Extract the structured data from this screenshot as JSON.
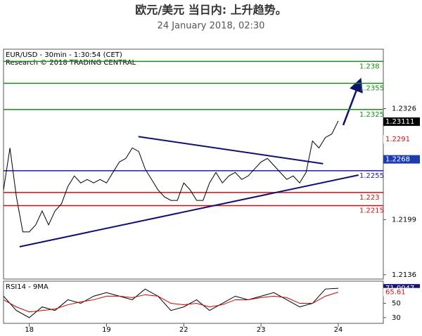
{
  "chart_data": [
    {
      "type": "line",
      "title": "欧元/美元 当日内: 上升趋势。",
      "subtitle": "24 January 2018, 02:30",
      "labels": [
        "EUR/USD - 30min - 1:30:54 (CET)",
        "Research © 2018 TRADING CENTRAL"
      ],
      "x": [
        0,
        2,
        4,
        6,
        8,
        10,
        12,
        14,
        16,
        18,
        20,
        22,
        24,
        26,
        28,
        30,
        32,
        34,
        36,
        38,
        40,
        42,
        44,
        46,
        48,
        50,
        52,
        54,
        56,
        58,
        60,
        62,
        64,
        66,
        68,
        70,
        72,
        74,
        76,
        78,
        80,
        82,
        84,
        86,
        88,
        90,
        92,
        94,
        96,
        98,
        100,
        102,
        104
      ],
      "series": [
        {
          "color": "#000000",
          "values": [
            1.2233,
            1.2281,
            1.2225,
            1.2185,
            1.2185,
            1.2193,
            1.2209,
            1.2193,
            1.2209,
            1.2217,
            1.2237,
            1.2249,
            1.2241,
            1.2245,
            1.2241,
            1.2245,
            1.2241,
            1.2253,
            1.2265,
            1.2269,
            1.2281,
            1.2277,
            1.2257,
            1.2245,
            1.2233,
            1.2225,
            1.2221,
            1.2221,
            1.2241,
            1.2233,
            1.2221,
            1.2221,
            1.2241,
            1.2253,
            1.2241,
            1.2249,
            1.2253,
            1.2245,
            1.2249,
            1.2257,
            1.2265,
            1.2269,
            1.2261,
            1.2253,
            1.2245,
            1.2249,
            1.2241,
            1.2253,
            1.2289,
            1.2281,
            1.2293,
            1.2297,
            1.2312
          ]
        }
      ],
      "xlim": [
        0,
        118
      ],
      "ylim": [
        1.2131,
        1.2394
      ],
      "yticks": [
        1.2326,
        1.2199,
        1.2136
      ],
      "levels": [
        {
          "value": 1.238,
          "color": "#1a8a1a"
        },
        {
          "value": 1.2355,
          "color": "#1a8a1a"
        },
        {
          "value": 1.2325,
          "color": "#1a8a1a"
        },
        {
          "value": 1.2255,
          "color": "#1c1c9c"
        },
        {
          "value": 1.223,
          "color": "#d01010"
        },
        {
          "value": 1.2215,
          "color": "#d01010"
        }
      ],
      "trendlines": [
        {
          "color": "#101070",
          "x": [
            41.9,
            99.3
          ],
          "y": [
            1.2294,
            1.2263
          ]
        },
        {
          "color": "#101070",
          "x": [
            5,
            110.3
          ],
          "y": [
            1.2168,
            1.225
          ]
        }
      ],
      "markers": [
        {
          "value": 1.23111,
          "color": "#000000",
          "text_color": "#ffffff"
        },
        {
          "value": 1.2291,
          "color": "#ffffff",
          "text_color": "#d01010"
        },
        {
          "value": 1.2268,
          "color": "#1c3cb0",
          "text_color": "#ffffff"
        }
      ]
    },
    {
      "type": "line",
      "labels": [
        "RSI14 - 9MA"
      ],
      "x": [
        0,
        4,
        8,
        12,
        16,
        20,
        24,
        28,
        32,
        36,
        40,
        44,
        48,
        52,
        56,
        60,
        64,
        68,
        72,
        76,
        80,
        84,
        88,
        92,
        96,
        100,
        104
      ],
      "series": [
        {
          "color": "#000000",
          "values": [
            60,
            40,
            30,
            45,
            40,
            55,
            50,
            60,
            65,
            60,
            55,
            70,
            60,
            40,
            45,
            55,
            40,
            50,
            60,
            55,
            60,
            65,
            55,
            45,
            50,
            70,
            71.0047
          ]
        },
        {
          "color": "#cc0000",
          "values": [
            55,
            45,
            38,
            40,
            42,
            48,
            52,
            55,
            60,
            60,
            58,
            62,
            60,
            50,
            48,
            50,
            45,
            48,
            55,
            55,
            58,
            60,
            58,
            50,
            50,
            60,
            65.61
          ]
        }
      ],
      "xlim": [
        0,
        118
      ],
      "xticks": [
        {
          "value": 8,
          "label": "18"
        },
        {
          "value": 32,
          "label": "19"
        },
        {
          "value": 56,
          "label": "22"
        },
        {
          "value": 80,
          "label": "23"
        },
        {
          "value": 104,
          "label": "24"
        }
      ],
      "ylim": [
        22,
        81
      ],
      "yticks": [
        50,
        30
      ],
      "markers": [
        {
          "value": 71.0047,
          "color": "#141470",
          "text_color": "#ffffff"
        },
        {
          "value": 65.61,
          "color": "#ffffff",
          "text_color": "#d01010"
        }
      ]
    }
  ]
}
